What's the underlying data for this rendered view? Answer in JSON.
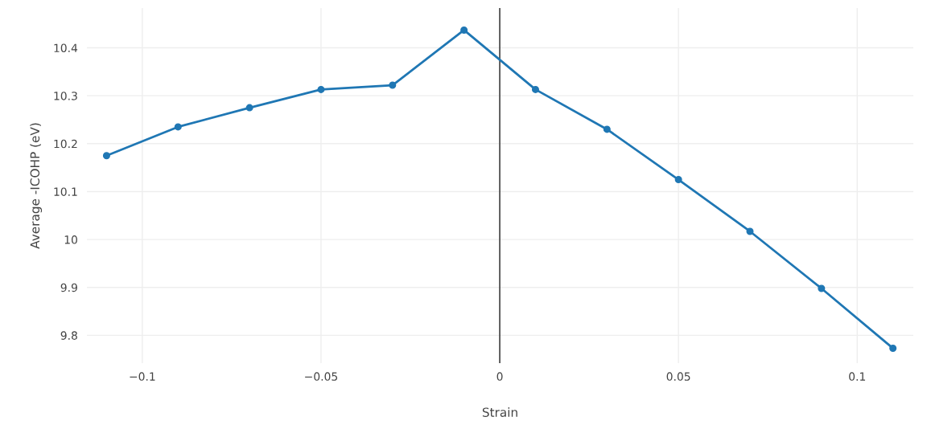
{
  "chart_data": {
    "type": "line",
    "xlabel": "Strain",
    "ylabel": "Average -ICOHP (eV)",
    "x": [
      -0.11,
      -0.09,
      -0.07,
      -0.05,
      -0.03,
      -0.01,
      0.01,
      0.03,
      0.05,
      0.07,
      0.09,
      0.11
    ],
    "series": [
      {
        "color": "#1f77b4",
        "values": [
          10.175,
          10.235,
          10.275,
          10.313,
          10.322,
          10.437,
          10.313,
          10.23,
          10.125,
          10.017,
          9.898,
          9.773
        ]
      }
    ],
    "xlim": [
      -0.1155,
      0.1157
    ],
    "ylim": [
      9.742,
      10.483
    ],
    "xticks": [
      {
        "value": -0.1,
        "label": "−0.1"
      },
      {
        "value": -0.05,
        "label": "−0.05"
      },
      0,
      0.05,
      0.1
    ],
    "yticks": [
      9.8,
      9.9,
      10,
      10.1,
      10.2,
      10.3,
      10.4
    ],
    "ref_lines": [
      {
        "axis": "x",
        "value": 0,
        "color": "#444444"
      }
    ],
    "grid": true,
    "marker": "circle",
    "line_style": "solid"
  }
}
